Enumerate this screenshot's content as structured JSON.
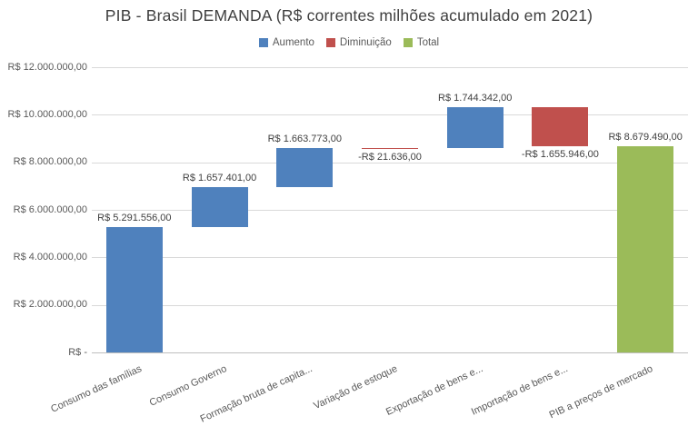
{
  "title": "PIB - Brasil DEMANDA (R$ correntes milhões acumulado em 2021)",
  "legend": [
    {
      "label": "Aumento",
      "color": "#4F81BD"
    },
    {
      "label": "Diminuição",
      "color": "#C0504D"
    },
    {
      "label": "Total",
      "color": "#9BBB59"
    }
  ],
  "colors": {
    "increase": "#4F81BD",
    "decrease": "#C0504D",
    "total": "#9BBB59",
    "gridline": "#d9d9d9",
    "axis_line": "#bfbfbf",
    "tick_text": "#595959",
    "data_label_text": "#404040"
  },
  "chart_data": {
    "type": "bar",
    "subtype": "waterfall",
    "title": "PIB - Brasil DEMANDA (R$ correntes milhões acumulado em 2021)",
    "xlabel": "",
    "ylabel": "",
    "grid": true,
    "legend_position": "top",
    "ylim": [
      0,
      12000000
    ],
    "y_axis": {
      "min": 0,
      "max": 12000000,
      "step": 2000000,
      "tick_labels": [
        "R$ -",
        "R$ 2.000.000,00",
        "R$ 4.000.000,00",
        "R$ 6.000.000,00",
        "R$ 8.000.000,00",
        "R$ 10.000.000,00",
        "R$ 12.000.000,00"
      ]
    },
    "categories": [
      "Consumo das famílias",
      "Consumo Governo",
      "Formação bruta de capita...",
      "Variação de estoque",
      "Exportação de bens e...",
      "Importação de bens e...",
      "PIB a preços de mercado"
    ],
    "bars": [
      {
        "category": "Consumo das famílias",
        "type": "increase",
        "value": 5291556,
        "start": 0,
        "end": 5291556,
        "label": "R$ 5.291.556,00"
      },
      {
        "category": "Consumo Governo",
        "type": "increase",
        "value": 1657401,
        "start": 5291556,
        "end": 6948957,
        "label": "R$ 1.657.401,00"
      },
      {
        "category": "Formação bruta de capita...",
        "type": "increase",
        "value": 1663773,
        "start": 6948957,
        "end": 8612730,
        "label": "R$ 1.663.773,00"
      },
      {
        "category": "Variação de estoque",
        "type": "decrease",
        "value": -21636,
        "start": 8612730,
        "end": 8591094,
        "label": "-R$ 21.636,00"
      },
      {
        "category": "Exportação de bens e...",
        "type": "increase",
        "value": 1744342,
        "start": 8591094,
        "end": 10335436,
        "label": "R$ 1.744.342,00"
      },
      {
        "category": "Importação de bens e...",
        "type": "decrease",
        "value": -1655946,
        "start": 10335436,
        "end": 8679490,
        "label": "-R$ 1.655.946,00"
      },
      {
        "category": "PIB a preços de mercado",
        "type": "total",
        "value": 8679490,
        "start": 0,
        "end": 8679490,
        "label": "R$ 8.679.490,00"
      }
    ]
  }
}
